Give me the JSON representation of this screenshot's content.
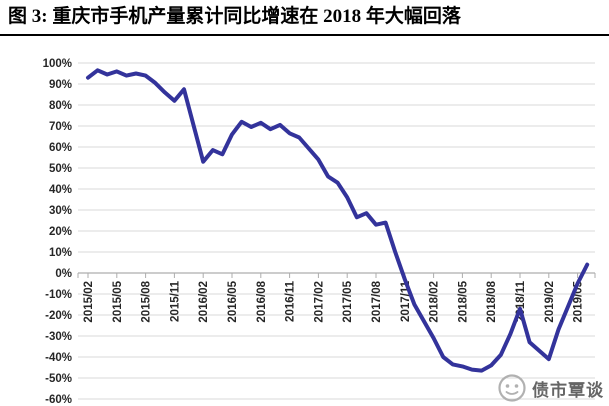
{
  "title": "图 3: 重庆市手机产量累计同比增速在 2018 年大幅回落",
  "watermark": {
    "text": "债市覃谈"
  },
  "chart_data": {
    "type": "line",
    "title": "图 3: 重庆市手机产量累计同比增速在 2018 年大幅回落",
    "xlabel": "",
    "ylabel": "",
    "ylim": [
      -60,
      100
    ],
    "ytick_step": 10,
    "ytick_labels": [
      "100%",
      "90%",
      "80%",
      "70%",
      "60%",
      "50%",
      "40%",
      "30%",
      "20%",
      "10%",
      "0%",
      "-10%",
      "-20%",
      "-30%",
      "-40%",
      "-50%",
      "-60%"
    ],
    "xticks": [
      "2015/02",
      "2015/05",
      "2015/08",
      "2015/11",
      "2016/02",
      "2016/05",
      "2016/08",
      "2016/11",
      "2017/02",
      "2017/05",
      "2017/08",
      "2017/11",
      "2018/02",
      "2018/05",
      "2018/08",
      "2018/11",
      "2019/02",
      "2019/05"
    ],
    "grid": true,
    "legend": "none",
    "colors": {
      "line": "#33339B",
      "gridline": "#D8D8D8",
      "axis": "#ADADAD",
      "tick_text": "#262626"
    },
    "series": [
      {
        "name": "重庆市手机产量累计同比增速",
        "color": "#33339B",
        "x": [
          "2015/02",
          "2015/03",
          "2015/04",
          "2015/05",
          "2015/06",
          "2015/07",
          "2015/08",
          "2015/09",
          "2015/10",
          "2015/11",
          "2015/12",
          "2016/02",
          "2016/03",
          "2016/04",
          "2016/05",
          "2016/06",
          "2016/07",
          "2016/08",
          "2016/09",
          "2016/10",
          "2016/11",
          "2016/12",
          "2017/02",
          "2017/03",
          "2017/04",
          "2017/05",
          "2017/06",
          "2017/07",
          "2017/08",
          "2017/09",
          "2017/10",
          "2017/11",
          "2017/12",
          "2018/02",
          "2018/03",
          "2018/04",
          "2018/05",
          "2018/06",
          "2018/07",
          "2018/08",
          "2018/09",
          "2018/10",
          "2018/11",
          "2018/12",
          "2019/02",
          "2019/03",
          "2019/04",
          "2019/05",
          "2019/06"
        ],
        "values": [
          93,
          96.5,
          94.5,
          96,
          94,
          95,
          94,
          90.5,
          86,
          82,
          87.5,
          53,
          58.5,
          56.5,
          66,
          72,
          69.5,
          71.5,
          68.5,
          70.5,
          66.5,
          64.5,
          54,
          46,
          43,
          36,
          26.5,
          28.5,
          23,
          24,
          10,
          -3,
          -15,
          -31,
          -40,
          -43.5,
          -44.5,
          -46,
          -46.5,
          -44,
          -39,
          -29,
          -17,
          -33,
          -41,
          -27,
          -16,
          -5,
          4
        ]
      }
    ]
  }
}
